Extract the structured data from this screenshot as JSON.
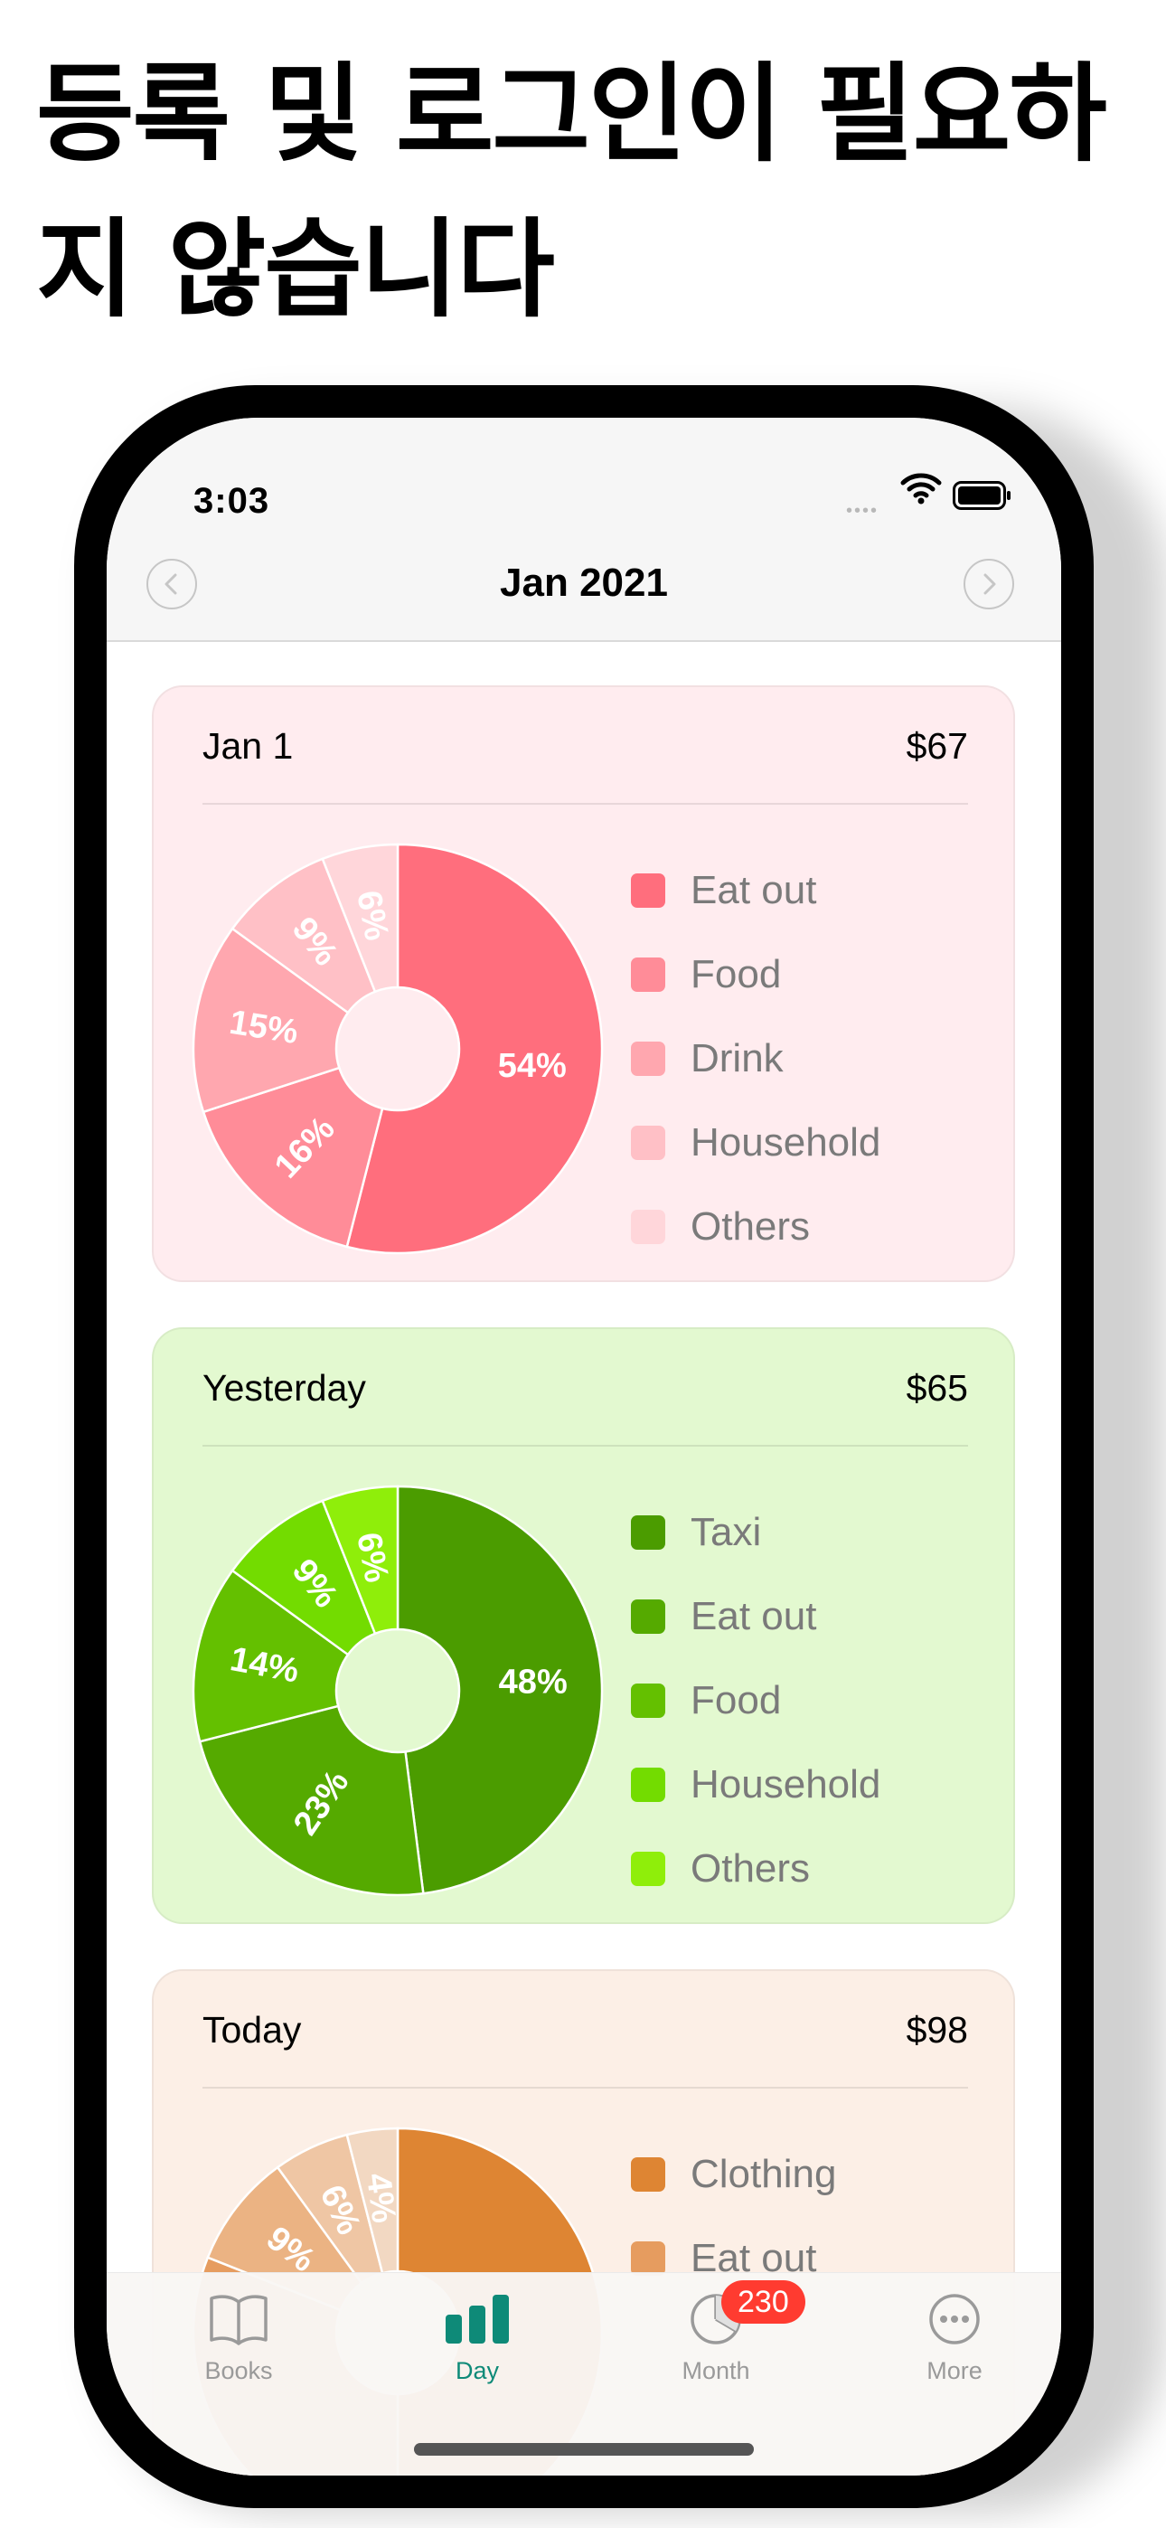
{
  "headline": "등록 및 로그인이 필요하\n지 않습니다",
  "status_bar": {
    "time": "3:03"
  },
  "navigation": {
    "title": "Jan 2021"
  },
  "cards": [
    {
      "date": "Jan 1",
      "total": "$67",
      "bg": "#ffecef",
      "legend": [
        "Eat out",
        "Food",
        "Drink",
        "Household",
        "Others"
      ],
      "colors": [
        "#ff6e7d",
        "#ff8c98",
        "#ffa7af",
        "#ffc0c6",
        "#ffd6da"
      ],
      "slice_labels": [
        "54%",
        "16%",
        "15%",
        "9%",
        "6%"
      ],
      "chart_data": {
        "type": "pie",
        "categories": [
          "Eat out",
          "Food",
          "Drink",
          "Household",
          "Others"
        ],
        "values": [
          54,
          16,
          15,
          9,
          6
        ]
      }
    },
    {
      "date": "Yesterday",
      "total": "$65",
      "bg": "#e3f9d0",
      "legend": [
        "Taxi",
        "Eat out",
        "Food",
        "Household",
        "Others"
      ],
      "colors": [
        "#4b9c00",
        "#55aa00",
        "#64c000",
        "#73dc00",
        "#8fee0a"
      ],
      "slice_labels": [
        "48%",
        "23%",
        "14%",
        "9%",
        "6%"
      ],
      "chart_data": {
        "type": "pie",
        "categories": [
          "Taxi",
          "Eat out",
          "Food",
          "Household",
          "Others"
        ],
        "values": [
          48,
          23,
          14,
          9,
          6
        ]
      }
    },
    {
      "date": "Today",
      "total": "$98",
      "bg": "#fcefe6",
      "legend": [
        "Clothing",
        "Eat out"
      ],
      "colors": [
        "#de8533",
        "#e69c5f",
        "#ebb383",
        "#efc6a4",
        "#f2d8c2"
      ],
      "slice_labels": [
        "",
        "",
        "9%",
        "6%",
        "4%"
      ],
      "chart_data": {
        "type": "pie",
        "categories": [
          "Clothing",
          "Eat out",
          "",
          "",
          ""
        ],
        "values": [
          50,
          31,
          9,
          6,
          4
        ]
      }
    }
  ],
  "tabbar": {
    "tabs": [
      {
        "label": "Books",
        "color": "#9a9a9a"
      },
      {
        "label": "Day",
        "color": "#0e8a78"
      },
      {
        "label": "Month",
        "color": "#9a9a9a",
        "badge": "230"
      },
      {
        "label": "More",
        "color": "#9a9a9a"
      }
    ]
  }
}
